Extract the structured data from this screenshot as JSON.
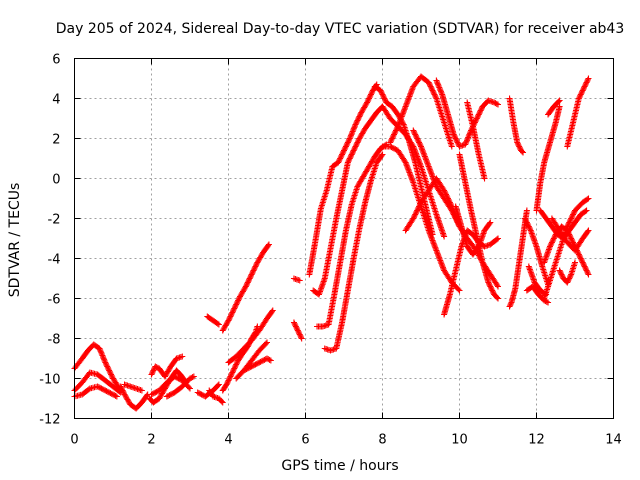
{
  "chart_data": {
    "type": "scatter",
    "title": "Day 205 of 2024, Sidereal Day-to-day VTEC variation (SDTVAR) for receiver ab43",
    "xlabel": "GPS time / hours",
    "ylabel": "SDTVAR / TECUs",
    "xlim": [
      0,
      14
    ],
    "ylim": [
      -12,
      6
    ],
    "xticks": [
      0,
      2,
      4,
      6,
      8,
      10,
      12,
      14
    ],
    "yticks": [
      -12,
      -10,
      -8,
      -6,
      -4,
      -2,
      0,
      2,
      4,
      6
    ],
    "grid": true,
    "marker": "plus",
    "color": "#ff0000",
    "series": [
      {
        "x": [
          0.0,
          0.2,
          0.35,
          0.5,
          0.65,
          0.8,
          1.0,
          1.2
        ],
        "y": [
          -9.5,
          -9.0,
          -8.6,
          -8.3,
          -8.5,
          -9.2,
          -10.0,
          -10.6
        ]
      },
      {
        "x": [
          0.0,
          0.2,
          0.4,
          0.6,
          0.8,
          1.0,
          1.2
        ],
        "y": [
          -10.6,
          -10.2,
          -9.7,
          -9.8,
          -10.1,
          -10.4,
          -10.7
        ]
      },
      {
        "x": [
          0.0,
          0.2,
          0.4,
          0.6,
          0.8,
          1.0,
          1.1
        ],
        "y": [
          -10.9,
          -10.8,
          -10.5,
          -10.4,
          -10.6,
          -10.8,
          -10.9
        ]
      },
      {
        "x": [
          1.2,
          1.3,
          1.45,
          1.6,
          1.75,
          1.9
        ],
        "y": [
          -10.4,
          -10.8,
          -11.3,
          -11.5,
          -11.2,
          -10.8
        ]
      },
      {
        "x": [
          1.3,
          1.45,
          1.6,
          1.75
        ],
        "y": [
          -10.3,
          -10.4,
          -10.5,
          -10.6
        ]
      },
      {
        "x": [
          1.95,
          2.05,
          2.2,
          2.35,
          2.5,
          2.65,
          2.75,
          2.9
        ],
        "y": [
          -11.0,
          -11.2,
          -11.0,
          -10.5,
          -10.0,
          -9.6,
          -9.8,
          -10.2
        ]
      },
      {
        "x": [
          2.0,
          2.2,
          2.4,
          2.6,
          2.8,
          3.0
        ],
        "y": [
          -10.8,
          -10.6,
          -10.2,
          -9.9,
          -10.1,
          -10.5
        ]
      },
      {
        "x": [
          2.0,
          2.1,
          2.2,
          2.35,
          2.5,
          2.65,
          2.8
        ],
        "y": [
          -9.8,
          -9.4,
          -9.5,
          -9.9,
          -9.4,
          -9.0,
          -8.9
        ]
      },
      {
        "x": [
          2.4,
          2.6,
          2.8,
          3.0,
          3.1
        ],
        "y": [
          -10.9,
          -10.7,
          -10.4,
          -10.0,
          -9.9
        ]
      },
      {
        "x": [
          3.2,
          3.4,
          3.6,
          3.75
        ],
        "y": [
          -10.7,
          -10.9,
          -10.6,
          -10.3
        ]
      },
      {
        "x": [
          3.5,
          3.6,
          3.75,
          3.85
        ],
        "y": [
          -10.6,
          -10.9,
          -11.0,
          -11.2
        ]
      },
      {
        "x": [
          3.45,
          3.6,
          3.75
        ],
        "y": [
          -6.9,
          -7.1,
          -7.3
        ]
      },
      {
        "x": [
          3.85,
          3.95,
          4.05,
          4.15,
          4.25,
          4.35,
          4.5,
          4.6,
          4.7,
          4.75
        ],
        "y": [
          -10.6,
          -10.3,
          -9.9,
          -9.5,
          -9.1,
          -8.8,
          -8.4,
          -8.0,
          -7.7,
          -7.4
        ]
      },
      {
        "x": [
          3.85,
          4.0,
          4.15,
          4.3,
          4.45,
          4.6,
          4.75,
          4.9,
          5.05
        ],
        "y": [
          -7.6,
          -7.1,
          -6.5,
          -5.9,
          -5.4,
          -4.8,
          -4.2,
          -3.7,
          -3.3
        ]
      },
      {
        "x": [
          4.0,
          4.2,
          4.4,
          4.6,
          4.8,
          5.0,
          5.15
        ],
        "y": [
          -9.2,
          -8.9,
          -8.5,
          -8.1,
          -7.6,
          -7.0,
          -6.6
        ]
      },
      {
        "x": [
          4.2,
          4.4,
          4.6,
          4.8,
          5.0
        ],
        "y": [
          -10.0,
          -9.6,
          -9.1,
          -8.6,
          -8.2
        ]
      },
      {
        "x": [
          4.4,
          4.6,
          4.8,
          5.0,
          5.1
        ],
        "y": [
          -9.6,
          -9.4,
          -9.2,
          -9.0,
          -9.1
        ]
      },
      {
        "x": [
          5.7,
          5.8,
          5.9
        ],
        "y": [
          -7.2,
          -7.6,
          -8.0
        ]
      },
      {
        "x": [
          5.7,
          5.85
        ],
        "y": [
          -5.0,
          -5.1
        ]
      },
      {
        "x": [
          6.1,
          6.25,
          6.4,
          6.55,
          6.7,
          6.85,
          7.0,
          7.15,
          7.3,
          7.45,
          7.6,
          7.75,
          7.85
        ],
        "y": [
          -4.8,
          -3.2,
          -1.5,
          -0.6,
          0.6,
          0.8,
          1.4,
          2.0,
          2.7,
          3.3,
          3.8,
          4.4,
          4.7
        ]
      },
      {
        "x": [
          6.2,
          6.35,
          6.5,
          6.65,
          6.8,
          6.95,
          7.1,
          7.25,
          7.4,
          7.55,
          7.7,
          7.85,
          8.0
        ],
        "y": [
          -5.6,
          -5.8,
          -5.0,
          -3.5,
          -2.0,
          -0.6,
          0.8,
          1.4,
          2.0,
          2.5,
          2.9,
          3.3,
          3.6
        ]
      },
      {
        "x": [
          6.3,
          6.45,
          6.6,
          6.75,
          6.9,
          7.05,
          7.2,
          7.35,
          7.5,
          7.65,
          7.8,
          7.95,
          8.1
        ],
        "y": [
          -7.4,
          -7.4,
          -7.3,
          -5.8,
          -4.2,
          -2.6,
          -1.3,
          -0.4,
          0.1,
          0.6,
          1.1,
          1.5,
          1.7
        ]
      },
      {
        "x": [
          6.5,
          6.65,
          6.8,
          6.95,
          7.1,
          7.25,
          7.4,
          7.55,
          7.7,
          7.85,
          8.0
        ],
        "y": [
          -8.5,
          -8.6,
          -8.5,
          -7.2,
          -5.6,
          -4.0,
          -2.5,
          -1.2,
          -0.1,
          0.8,
          1.2
        ]
      },
      {
        "x": [
          7.8,
          7.95,
          8.1,
          8.25,
          8.4,
          8.55,
          8.7,
          8.85,
          9.0,
          9.15,
          9.3
        ],
        "y": [
          4.6,
          4.4,
          3.8,
          3.6,
          3.2,
          2.7,
          1.8,
          0.8,
          -0.4,
          -1.6,
          -2.8
        ]
      },
      {
        "x": [
          8.0,
          8.2,
          8.4,
          8.6,
          8.8,
          9.0,
          9.2,
          9.4,
          9.6
        ],
        "y": [
          3.6,
          3.0,
          2.6,
          2.2,
          1.6,
          0.6,
          -0.6,
          -1.8,
          -2.9
        ]
      },
      {
        "x": [
          8.0,
          8.2,
          8.4,
          8.6,
          8.8,
          9.0,
          9.2,
          9.4,
          9.6,
          9.8,
          10.0
        ],
        "y": [
          1.6,
          1.6,
          1.4,
          0.8,
          -0.2,
          -1.4,
          -2.6,
          -3.6,
          -4.6,
          -5.2,
          -5.6
        ]
      },
      {
        "x": [
          8.2,
          8.4,
          8.6,
          8.8,
          9.0,
          9.2,
          9.4,
          9.6,
          9.8
        ],
        "y": [
          1.8,
          2.6,
          3.6,
          4.6,
          5.1,
          4.8,
          4.0,
          2.8,
          1.6
        ]
      },
      {
        "x": [
          8.6,
          8.8,
          9.0,
          9.2,
          9.4,
          9.6,
          9.8,
          10.0
        ],
        "y": [
          -2.6,
          -2.0,
          -1.2,
          -0.6,
          0.0,
          -0.6,
          -1.4,
          -2.4
        ]
      },
      {
        "x": [
          8.8,
          9.0,
          9.2,
          9.4,
          9.6,
          9.8,
          10.0,
          10.2,
          10.4,
          10.6,
          10.8,
          11.0
        ],
        "y": [
          2.4,
          1.6,
          0.6,
          -0.4,
          -1.0,
          -1.6,
          -2.4,
          -3.0,
          -3.5,
          -4.2,
          -4.8,
          -5.4
        ]
      },
      {
        "x": [
          9.6,
          9.75,
          9.9,
          10.05,
          10.2,
          10.35,
          10.5,
          10.65,
          10.8,
          11.0
        ],
        "y": [
          -6.8,
          -5.8,
          -4.6,
          -3.4,
          -2.6,
          -2.8,
          -3.2,
          -3.4,
          -3.3,
          -3.0
        ]
      },
      {
        "x": [
          9.4,
          9.55,
          9.7,
          9.85,
          10.0,
          10.15,
          10.3,
          10.45,
          10.6,
          10.75,
          10.9,
          11.0
        ],
        "y": [
          4.9,
          4.2,
          3.2,
          2.2,
          1.6,
          1.7,
          2.4,
          3.0,
          3.6,
          3.9,
          3.8,
          3.7
        ]
      },
      {
        "x": [
          9.9,
          10.05,
          10.2,
          10.35,
          10.5,
          10.65,
          10.8
        ],
        "y": [
          -1.4,
          -2.4,
          -3.4,
          -3.8,
          -3.4,
          -2.6,
          -2.2
        ]
      },
      {
        "x": [
          10.0,
          10.15,
          10.3,
          10.45,
          10.6,
          10.75,
          10.9,
          11.0
        ],
        "y": [
          1.2,
          -0.2,
          -1.6,
          -2.9,
          -4.2,
          -5.2,
          -5.8,
          -6.0
        ]
      },
      {
        "x": [
          10.2,
          10.35,
          10.5,
          10.65
        ],
        "y": [
          3.8,
          2.6,
          1.2,
          0.0
        ]
      },
      {
        "x": [
          11.3,
          11.35,
          11.45,
          11.55,
          11.65,
          11.75
        ],
        "y": [
          -6.4,
          -6.2,
          -5.5,
          -4.2,
          -2.9,
          -1.6
        ]
      },
      {
        "x": [
          11.3,
          11.4,
          11.5,
          11.6,
          11.65
        ],
        "y": [
          4.0,
          2.8,
          1.8,
          1.4,
          1.3
        ]
      },
      {
        "x": [
          11.7,
          11.85,
          12.0,
          12.15,
          12.3
        ],
        "y": [
          -2.0,
          -2.6,
          -3.4,
          -4.4,
          -5.3
        ]
      },
      {
        "x": [
          11.8,
          11.95,
          12.1,
          12.25
        ],
        "y": [
          -4.4,
          -5.2,
          -5.6,
          -5.8
        ]
      },
      {
        "x": [
          11.75,
          11.9,
          12.05,
          12.2,
          12.3
        ],
        "y": [
          -5.6,
          -5.4,
          -5.8,
          -6.1,
          -6.2
        ]
      },
      {
        "x": [
          12.0,
          12.1,
          12.2,
          12.35,
          12.5,
          12.6
        ],
        "y": [
          -1.6,
          -0.2,
          0.8,
          1.8,
          2.8,
          3.6
        ]
      },
      {
        "x": [
          12.1,
          12.25,
          12.4,
          12.55,
          12.7,
          12.85,
          13.0,
          13.15,
          13.3
        ],
        "y": [
          -1.6,
          -2.0,
          -2.4,
          -2.8,
          -3.0,
          -2.6,
          -2.2,
          -1.8,
          -1.6
        ]
      },
      {
        "x": [
          12.2,
          12.35,
          12.5,
          12.65,
          12.8,
          12.95,
          13.1,
          13.25,
          13.35
        ],
        "y": [
          -4.2,
          -3.4,
          -2.8,
          -2.4,
          -2.6,
          -3.2,
          -3.8,
          -4.4,
          -4.8
        ]
      },
      {
        "x": [
          12.2,
          12.4,
          12.6,
          12.8,
          13.0,
          13.2,
          13.35
        ],
        "y": [
          -6.0,
          -4.8,
          -3.6,
          -2.4,
          -1.6,
          -1.2,
          -1.0
        ]
      },
      {
        "x": [
          12.4,
          12.6,
          12.8,
          13.0,
          13.2,
          13.35
        ],
        "y": [
          -2.0,
          -2.6,
          -3.2,
          -3.6,
          -3.0,
          -2.6
        ]
      },
      {
        "x": [
          12.6,
          12.7,
          12.8,
          12.9,
          13.0
        ],
        "y": [
          -4.6,
          -5.0,
          -5.2,
          -4.8,
          -4.2
        ]
      },
      {
        "x": [
          12.8,
          12.95,
          13.1,
          13.25,
          13.35
        ],
        "y": [
          1.6,
          2.8,
          4.0,
          4.6,
          5.0
        ]
      },
      {
        "x": [
          12.3,
          12.45,
          12.6
        ],
        "y": [
          3.2,
          3.6,
          3.9
        ]
      }
    ]
  }
}
